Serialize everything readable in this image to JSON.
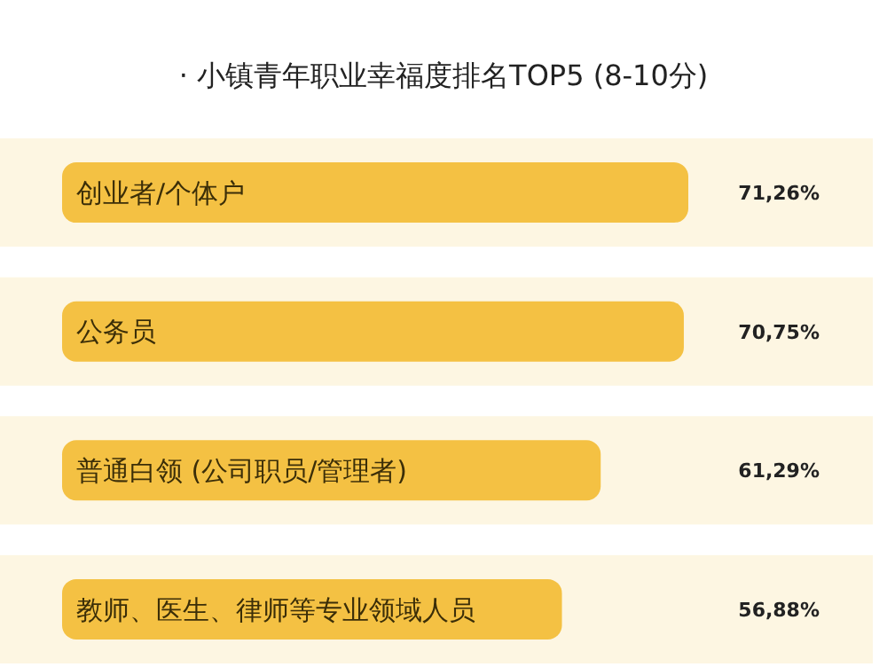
{
  "chart_data": {
    "type": "bar",
    "orientation": "horizontal",
    "title": "· 小镇青年职业幸福度排名TOP5 (8-10分)",
    "categories": [
      "创业者/个体户",
      "公务员",
      "普通白领 (公司职员/管理者)",
      "教师、医生、律师等专业领域人员"
    ],
    "values": [
      71.26,
      70.75,
      61.29,
      56.88
    ],
    "value_labels": [
      "71,26%",
      "70,75%",
      "61,29%",
      "56,88%"
    ],
    "color": "#f4c143"
  }
}
